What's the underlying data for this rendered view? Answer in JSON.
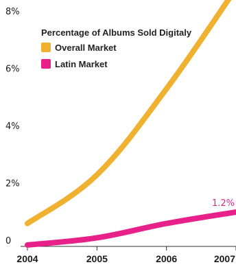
{
  "chart_data": {
    "type": "line",
    "title": "",
    "xlabel": "",
    "ylabel": "",
    "x": [
      "2004",
      "2005",
      "2006",
      "2007"
    ],
    "ylim": [
      0,
      8
    ],
    "yticks": [
      {
        "value": 0,
        "label": "0"
      },
      {
        "value": 2,
        "label": "2%"
      },
      {
        "value": 4,
        "label": "4%"
      },
      {
        "value": 6,
        "label": "6%"
      },
      {
        "value": 8,
        "label": "8%"
      }
    ],
    "grid": false,
    "legend": {
      "title": "Percentage of Albums Sold Digitaly",
      "placement": "top-left"
    },
    "series": [
      {
        "name": "Overall Market",
        "values": [
          0.8,
          2.5,
          5.5,
          9.0
        ],
        "color": "#f0b030"
      },
      {
        "name": "Latin Market",
        "values": [
          0.05,
          0.3,
          0.8,
          1.2
        ],
        "color": "#e8208a"
      }
    ],
    "annotations": [
      {
        "series": 1,
        "index": 3,
        "text": "1.2%"
      }
    ]
  }
}
